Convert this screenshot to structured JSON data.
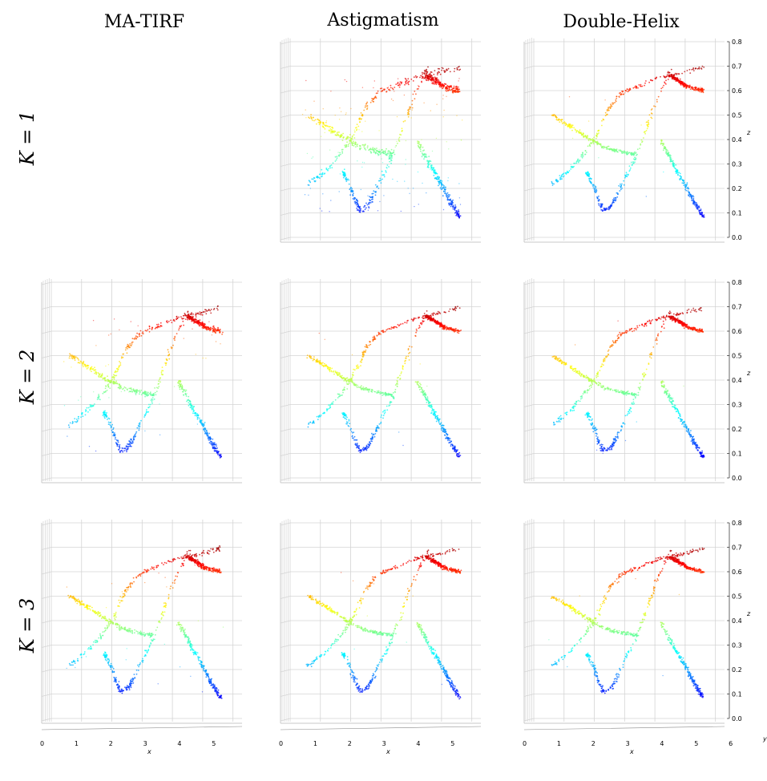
{
  "figure": {
    "column_titles": [
      "MA-TIRF",
      "Astigmatism",
      "Double-Helix"
    ],
    "row_labels": [
      "K = 1",
      "K = 2",
      "K = 3"
    ]
  },
  "colors": {
    "colormap": "jet",
    "grid": "#d0d0d0",
    "axis": "#000000"
  },
  "chart_data": {
    "type": "scatter",
    "projection": "3d",
    "view": "x-z face, y depth",
    "grid": true,
    "colormap": "jet (color encodes z)",
    "xlabel": "x",
    "ylabel": "y",
    "zlabel": "z",
    "xlim": [
      0,
      6.3
    ],
    "zlim": [
      0,
      0.8
    ],
    "x_ticks": [
      "0",
      "1",
      "2",
      "3",
      "4",
      "5",
      "6"
    ],
    "z_ticks": [
      "0.0",
      "0.1",
      "0.2",
      "0.3",
      "0.4",
      "0.5",
      "0.6",
      "0.7",
      "0.8"
    ],
    "structures": [
      {
        "points": [
          [
            4.55,
            0.69
          ],
          [
            4.1,
            0.575
          ],
          [
            3.7,
            0.44
          ],
          [
            3.4,
            0.335
          ],
          [
            3.05,
            0.245
          ],
          [
            2.7,
            0.16
          ],
          [
            2.55,
            0.125
          ],
          [
            2.3,
            0.11
          ],
          [
            2.15,
            0.15
          ],
          [
            2.0,
            0.205
          ],
          [
            1.8,
            0.255
          ],
          [
            1.75,
            0.265
          ]
        ]
      },
      {
        "points": [
          [
            0.6,
            0.5
          ],
          [
            1.2,
            0.455
          ],
          [
            1.75,
            0.41
          ],
          [
            2.3,
            0.37
          ],
          [
            2.9,
            0.35
          ],
          [
            3.4,
            0.34
          ]
        ]
      },
      {
        "points": [
          [
            0.6,
            0.215
          ],
          [
            1.2,
            0.275
          ],
          [
            1.75,
            0.355
          ],
          [
            2.1,
            0.42
          ],
          [
            2.5,
            0.53
          ],
          [
            2.9,
            0.59
          ],
          [
            3.5,
            0.62
          ],
          [
            4.2,
            0.655
          ],
          [
            4.8,
            0.67
          ],
          [
            5.6,
            0.695
          ]
        ]
      },
      {
        "points": [
          [
            4.5,
            0.66
          ],
          [
            4.8,
            0.64
          ],
          [
            5.1,
            0.615
          ],
          [
            5.6,
            0.6
          ]
        ]
      },
      {
        "points": [
          [
            4.2,
            0.395
          ],
          [
            4.6,
            0.3
          ],
          [
            5.0,
            0.215
          ],
          [
            5.3,
            0.145
          ],
          [
            5.6,
            0.085
          ]
        ]
      }
    ],
    "panels": [
      {
        "row": 0,
        "col": 0,
        "empty": true
      },
      {
        "row": 0,
        "col": 1,
        "noise": 0.018,
        "outliers": 0.3
      },
      {
        "row": 0,
        "col": 2,
        "noise": 0.009,
        "outliers": 0.03,
        "z_axis": true
      },
      {
        "row": 1,
        "col": 0,
        "noise": 0.013,
        "outliers": 0.1
      },
      {
        "row": 1,
        "col": 1,
        "noise": 0.009,
        "outliers": 0.02
      },
      {
        "row": 1,
        "col": 2,
        "noise": 0.009,
        "outliers": 0.02,
        "z_axis": true
      },
      {
        "row": 2,
        "col": 0,
        "noise": 0.011,
        "outliers": 0.06,
        "x_axis": true
      },
      {
        "row": 2,
        "col": 1,
        "noise": 0.009,
        "outliers": 0.02,
        "x_axis": true
      },
      {
        "row": 2,
        "col": 2,
        "noise": 0.009,
        "outliers": 0.02,
        "z_axis": true,
        "x_axis": true,
        "y_axis": true
      }
    ]
  }
}
